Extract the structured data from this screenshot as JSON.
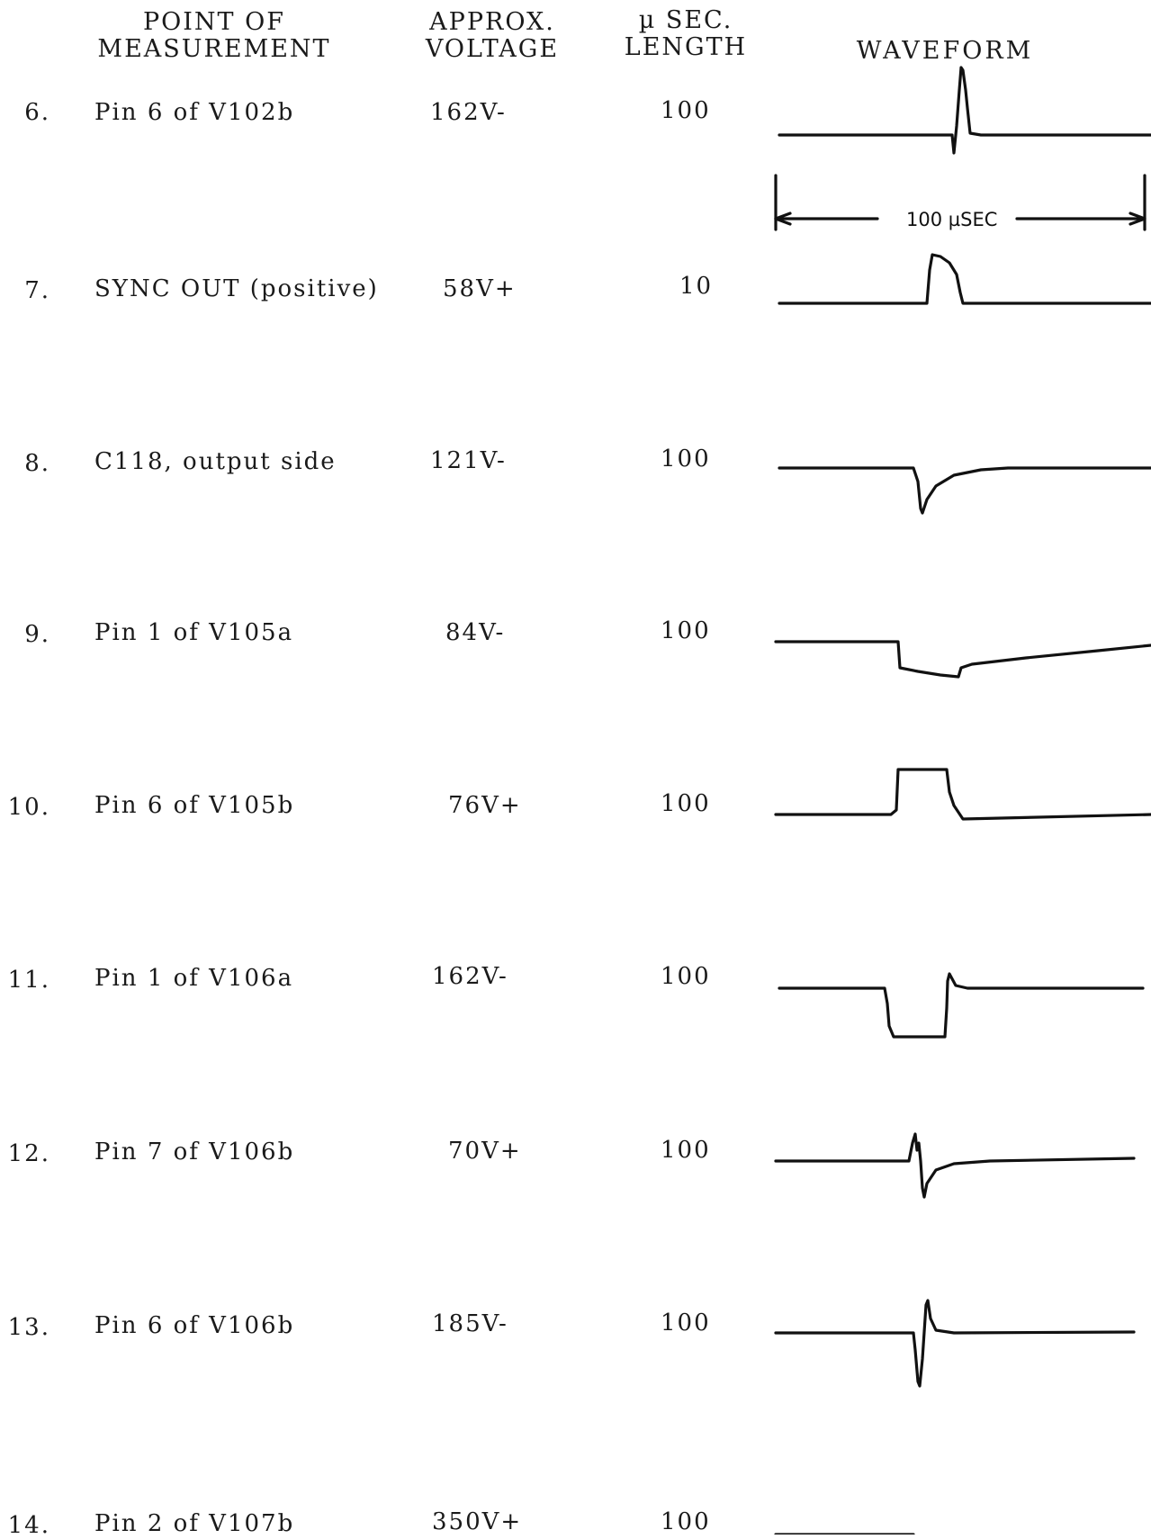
{
  "headers": {
    "point_line1": "POINT OF",
    "point_line2": "MEASUREMENT",
    "voltage_line1": "APPROX.",
    "voltage_line2": "VOLTAGE",
    "length_line1": "µ SEC.",
    "length_line2": "LENGTH",
    "waveform": "WAVEFORM"
  },
  "scale_label": "100 µSEC",
  "rows": [
    {
      "num": "6.",
      "point": "Pin 6 of V102b",
      "voltage": "162V-",
      "length": "100",
      "waveform": "sharp-positive-spike"
    },
    {
      "num": "7.",
      "point": "SYNC OUT (positive)",
      "voltage": "58V+",
      "length": "10",
      "waveform": "positive-rounded-pulse"
    },
    {
      "num": "8.",
      "point": "C118, output side",
      "voltage": "121V-",
      "length": "100",
      "waveform": "negative-spike-with-decay"
    },
    {
      "num": "9.",
      "point": "Pin 1 of V105a",
      "voltage": "84V-",
      "length": "100",
      "waveform": "negative-step-with-recovery"
    },
    {
      "num": "10.",
      "point": "Pin 6 of V105b",
      "voltage": "76V+",
      "length": "100",
      "waveform": "positive-square-pulse"
    },
    {
      "num": "11.",
      "point": "Pin 1 of V106a",
      "voltage": "162V-",
      "length": "100",
      "waveform": "negative-square-pulse"
    },
    {
      "num": "12.",
      "point": "Pin 7 of V106b",
      "voltage": "70V+",
      "length": "100",
      "waveform": "bipolar-spike-negative"
    },
    {
      "num": "13.",
      "point": "Pin 6 of V106b",
      "voltage": "185V-",
      "length": "100",
      "waveform": "bipolar-spike-positive"
    },
    {
      "num": "14.",
      "point": "Pin 2 of V107b",
      "voltage": "350V+",
      "length": "100",
      "waveform": "bipolar-spike-positive"
    }
  ]
}
